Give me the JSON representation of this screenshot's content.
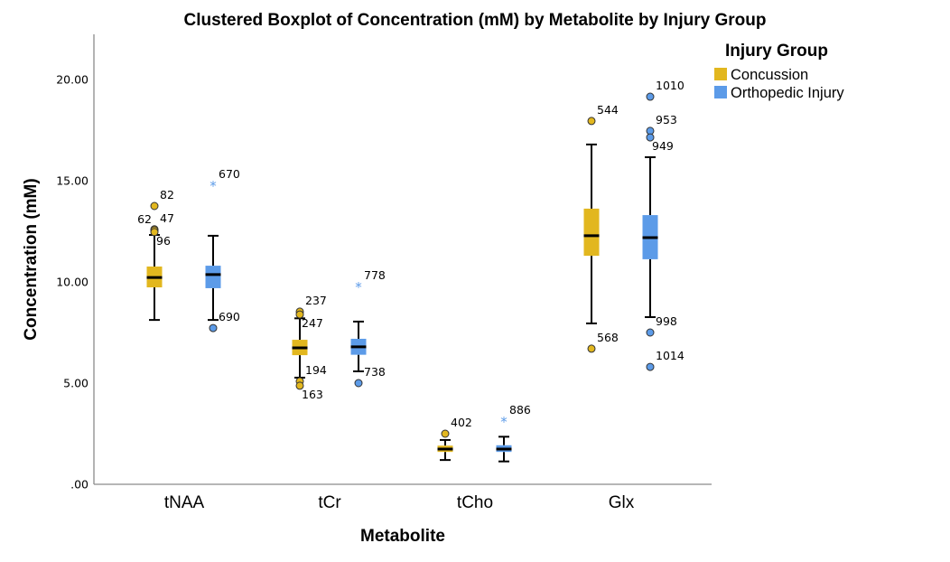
{
  "chart_data": {
    "type": "boxplot",
    "title": "Clustered Boxplot of Concentration (mM) by Metabolite by Injury Group",
    "xlabel": "Metabolite",
    "ylabel": "Concentration (mM)",
    "ylim": [
      0,
      22
    ],
    "yticks": [
      0,
      5,
      10,
      15,
      20
    ],
    "ytick_labels": [
      ".00",
      "5.00",
      "10.00",
      "15.00",
      "20.00"
    ],
    "categories": [
      "tNAA",
      "tCr",
      "tCho",
      "Glx"
    ],
    "legend": {
      "title": "Injury Group",
      "position": "top-right",
      "entries": [
        {
          "name": "Concussion",
          "color": "#E2B71F"
        },
        {
          "name": "Orthopedic Injury",
          "color": "#5C9BE8"
        }
      ]
    },
    "series": [
      {
        "name": "Concussion",
        "color": "#E2B71F",
        "boxes": [
          {
            "category": "tNAA",
            "whisker_low": 8.12,
            "q1": 9.73,
            "median": 10.22,
            "q3": 10.76,
            "whisker_high": 12.32,
            "outliers": [
              {
                "value": 13.75,
                "label": "82",
                "type": "circle",
                "label_pos": "right-up"
              },
              {
                "value": 12.6,
                "label": "47",
                "type": "circle",
                "label_pos": "right-up"
              },
              {
                "value": 12.55,
                "label": "62",
                "type": "circle",
                "label_pos": "left-up"
              },
              {
                "value": 12.46,
                "label": "96",
                "type": "circle",
                "label_pos": "right-down"
              }
            ]
          },
          {
            "category": "tCr",
            "whisker_low": 5.27,
            "q1": 6.38,
            "median": 6.74,
            "q3": 7.14,
            "whisker_high": 8.2,
            "outliers": [
              {
                "value": 8.53,
                "label": "237",
                "type": "circle",
                "label_pos": "right-up"
              },
              {
                "value": 8.39,
                "label": "247",
                "type": "circle",
                "label_pos": "right-down"
              },
              {
                "value": 5.09,
                "label": "194",
                "type": "circle",
                "label_pos": "right-up"
              },
              {
                "value": 4.87,
                "label": "163",
                "type": "circle",
                "label_pos": "right-down"
              }
            ]
          },
          {
            "category": "tCho",
            "whisker_low": 1.2,
            "q1": 1.6,
            "median": 1.74,
            "q3": 1.91,
            "whisker_high": 2.19,
            "outliers": [
              {
                "value": 2.5,
                "label": "402",
                "type": "circle",
                "label_pos": "right-up"
              }
            ]
          },
          {
            "category": "Glx",
            "whisker_low": 7.95,
            "q1": 11.29,
            "median": 12.28,
            "q3": 13.62,
            "whisker_high": 16.79,
            "outliers": [
              {
                "value": 17.95,
                "label": "544",
                "type": "circle",
                "label_pos": "right-up"
              },
              {
                "value": 6.7,
                "label": "568",
                "type": "circle",
                "label_pos": "right-up"
              }
            ]
          }
        ]
      },
      {
        "name": "Orthopedic Injury",
        "color": "#5C9BE8",
        "boxes": [
          {
            "category": "tNAA",
            "whisker_low": 8.12,
            "q1": 9.69,
            "median": 10.36,
            "q3": 10.8,
            "whisker_high": 12.28,
            "outliers": [
              {
                "value": 14.78,
                "label": "670",
                "type": "star",
                "label_pos": "right-up"
              },
              {
                "value": 7.72,
                "label": "690",
                "type": "circle",
                "label_pos": "right-up"
              }
            ]
          },
          {
            "category": "tCr",
            "whisker_low": 5.58,
            "q1": 6.4,
            "median": 6.79,
            "q3": 7.19,
            "whisker_high": 8.04,
            "outliers": [
              {
                "value": 9.78,
                "label": "778",
                "type": "star",
                "label_pos": "right-up"
              },
              {
                "value": 5.0,
                "label": "738",
                "type": "circle",
                "label_pos": "right-up"
              }
            ]
          },
          {
            "category": "tCho",
            "whisker_low": 1.13,
            "q1": 1.6,
            "median": 1.74,
            "q3": 1.93,
            "whisker_high": 2.35,
            "outliers": [
              {
                "value": 3.13,
                "label": "886",
                "type": "star",
                "label_pos": "right-up"
              }
            ]
          },
          {
            "category": "Glx",
            "whisker_low": 8.26,
            "q1": 11.12,
            "median": 12.19,
            "q3": 13.3,
            "whisker_high": 16.16,
            "outliers": [
              {
                "value": 19.15,
                "label": "1010",
                "type": "circle",
                "label_pos": "right-up"
              },
              {
                "value": 17.46,
                "label": "953",
                "type": "circle",
                "label_pos": "right-up"
              },
              {
                "value": 17.14,
                "label": "949",
                "type": "circle",
                "label_pos": "right-down"
              },
              {
                "value": 7.5,
                "label": "998",
                "type": "circle",
                "label_pos": "right-up"
              },
              {
                "value": 5.8,
                "label": "1014",
                "type": "circle",
                "label_pos": "right-up"
              }
            ]
          }
        ]
      }
    ]
  }
}
